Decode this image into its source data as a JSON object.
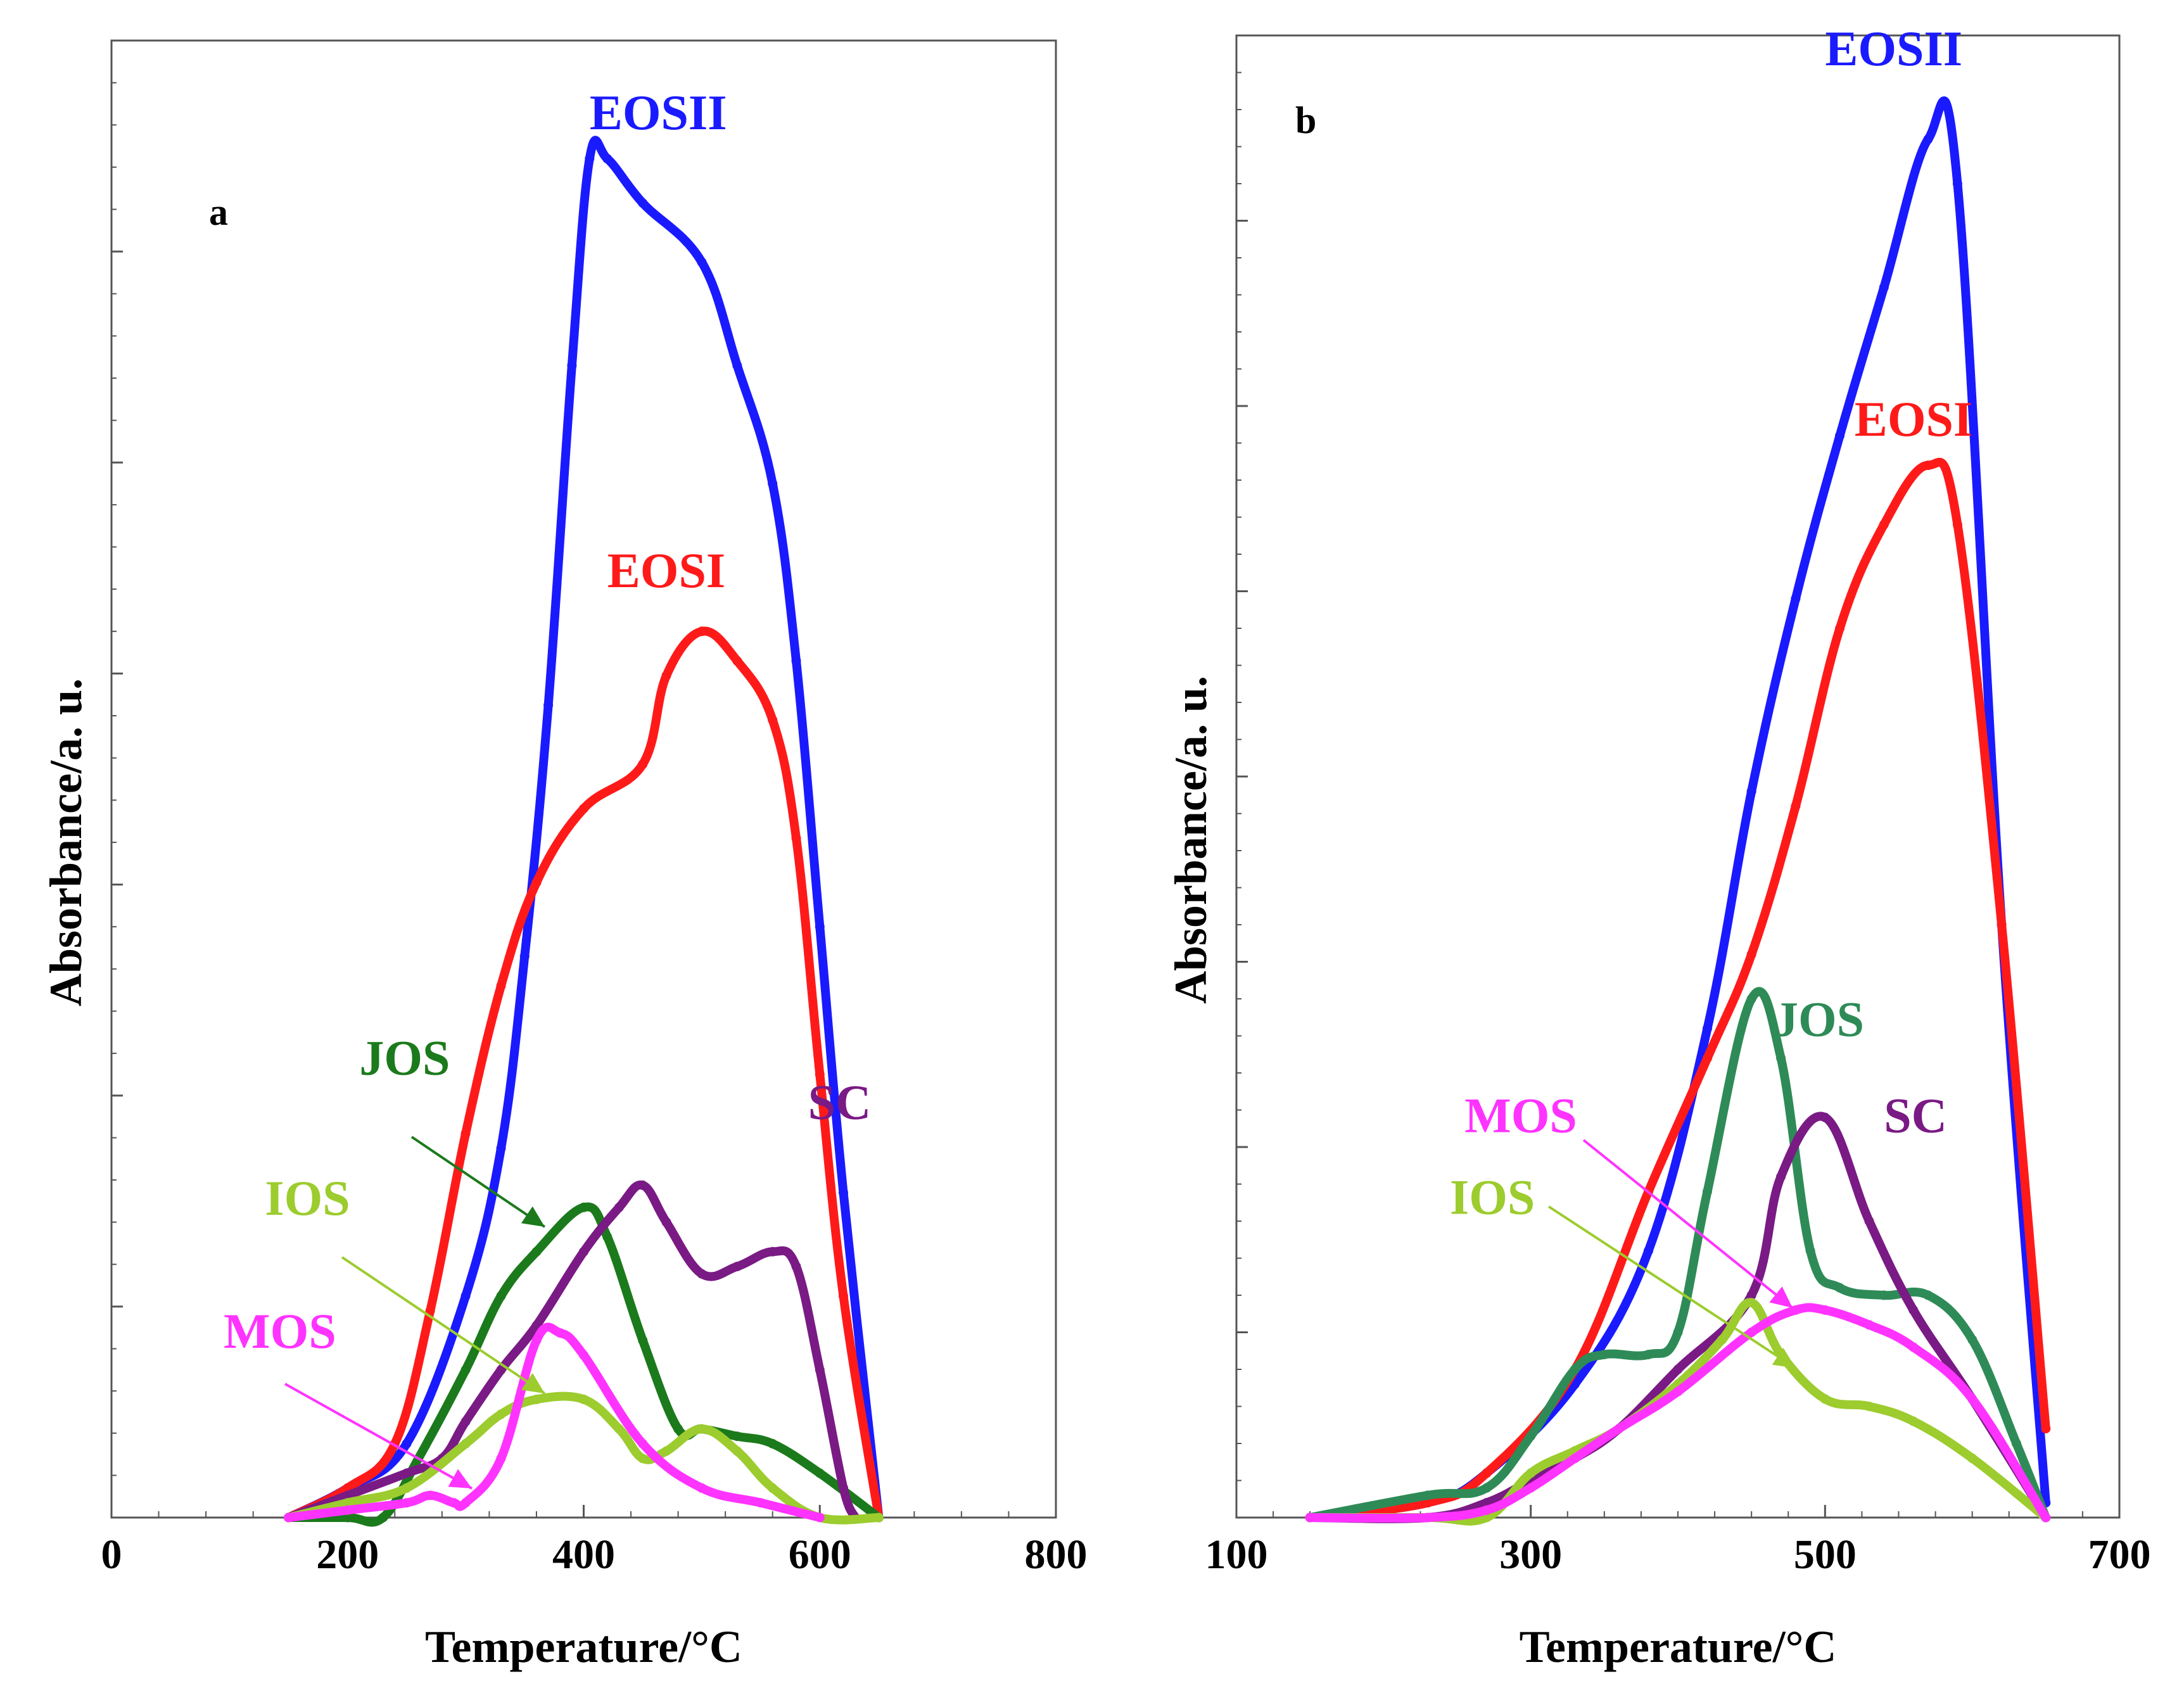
{
  "chart_data": [
    {
      "type": "line",
      "panel": "a",
      "xlabel": "Temperature/°C",
      "ylabel": "Absorbance/a. u.",
      "xlim": [
        0,
        800
      ],
      "ylim": [
        0,
        100
      ],
      "x_ticks": [
        0,
        200,
        400,
        600,
        800
      ],
      "series": [
        {
          "name": "EOSII",
          "color": "#1a1aff",
          "label_at": [
            405,
            94
          ],
          "label_anchor": "start",
          "x": [
            150,
            200,
            250,
            300,
            330,
            350,
            370,
            390,
            405,
            420,
            450,
            500,
            530,
            560,
            580,
            600,
            620,
            650
          ],
          "y": [
            0,
            2,
            5,
            15,
            25,
            38,
            55,
            78,
            92,
            92,
            89,
            85,
            78,
            70,
            58,
            40,
            22,
            0
          ]
        },
        {
          "name": "EOSI",
          "color": "#ff1a1a",
          "label_at": [
            420,
            63
          ],
          "label_anchor": "start",
          "x": [
            150,
            200,
            240,
            270,
            300,
            330,
            360,
            400,
            450,
            470,
            500,
            530,
            560,
            580,
            600,
            620,
            650
          ],
          "y": [
            0,
            2,
            5,
            14,
            26,
            36,
            43,
            48,
            51,
            57,
            60,
            58,
            54,
            46,
            30,
            15,
            0
          ]
        },
        {
          "name": "JOS",
          "color": "#1b7a1b",
          "label_at": [
            210,
            30
          ],
          "label_anchor": "start",
          "x": [
            150,
            200,
            230,
            260,
            300,
            330,
            360,
            400,
            420,
            450,
            480,
            500,
            530,
            560,
            600,
            650
          ],
          "y": [
            0,
            0,
            0,
            4,
            10,
            15,
            18,
            21,
            19,
            12,
            6,
            6,
            5.5,
            5,
            3,
            0
          ]
        },
        {
          "name": "SC",
          "color": "#7a1a85",
          "label_at": [
            590,
            27
          ],
          "label_anchor": "start",
          "x": [
            150,
            200,
            250,
            280,
            300,
            330,
            360,
            400,
            430,
            450,
            470,
            500,
            530,
            560,
            580,
            600,
            620,
            630
          ],
          "y": [
            0,
            1.5,
            3,
            4,
            6.5,
            10,
            13,
            18,
            21,
            22.5,
            20,
            16.5,
            17,
            18,
            17,
            10,
            2,
            0
          ]
        },
        {
          "name": "IOS",
          "color": "#9ccc2e",
          "label_at": [
            130,
            20.5
          ],
          "label_anchor": "start",
          "x": [
            150,
            200,
            250,
            300,
            330,
            360,
            400,
            430,
            450,
            470,
            500,
            530,
            560,
            600,
            650
          ],
          "y": [
            0,
            1,
            2,
            5,
            7,
            8,
            8,
            6,
            4,
            4.5,
            6,
            4.5,
            2,
            0,
            0
          ]
        },
        {
          "name": "MOS",
          "color": "#ff33ff",
          "label_at": [
            95,
            11.5
          ],
          "label_anchor": "start",
          "x": [
            150,
            200,
            250,
            270,
            290,
            300,
            330,
            360,
            380,
            400,
            450,
            500,
            550,
            600
          ],
          "y": [
            0,
            0.5,
            1,
            1.5,
            1,
            1,
            4,
            12,
            12.5,
            11,
            5,
            2,
            1,
            0
          ]
        }
      ],
      "annotations": [
        {
          "text": "JOS",
          "color": "#1b7a1b"
        },
        {
          "text": "IOS",
          "color": "#9ccc2e"
        },
        {
          "text": "MOS",
          "color": "#ff33ff"
        }
      ]
    },
    {
      "type": "line",
      "panel": "b",
      "xlabel": "Temperature/°C",
      "ylabel": "Absorbance/a. u.",
      "xlim": [
        100,
        700
      ],
      "ylim": [
        0,
        100
      ],
      "x_ticks": [
        100,
        300,
        500,
        700
      ],
      "series": [
        {
          "name": "EOSII",
          "color": "#1a1aff",
          "label_at": [
            500,
            98
          ],
          "label_anchor": "start",
          "x": [
            150,
            230,
            270,
            330,
            380,
            420,
            450,
            480,
            510,
            540,
            570,
            590,
            620,
            650
          ],
          "y": [
            0,
            1,
            3,
            9,
            18,
            33,
            49,
            62,
            73,
            83,
            93,
            90,
            40,
            1
          ]
        },
        {
          "name": "EOSI",
          "color": "#ff1a1a",
          "label_at": [
            520,
            73
          ],
          "label_anchor": "start",
          "x": [
            150,
            230,
            270,
            330,
            380,
            420,
            450,
            480,
            510,
            540,
            570,
            590,
            620,
            650
          ],
          "y": [
            0,
            1,
            3,
            10,
            22,
            31,
            38,
            48,
            60,
            67,
            71,
            67,
            40,
            6
          ]
        },
        {
          "name": "JOS",
          "color": "#2e8b57",
          "label_at": [
            465,
            32.5
          ],
          "label_anchor": "start",
          "x": [
            150,
            230,
            270,
            300,
            330,
            350,
            380,
            400,
            420,
            450,
            470,
            490,
            510,
            540,
            570,
            600,
            630,
            650
          ],
          "y": [
            0,
            1.5,
            2,
            5.5,
            10,
            11,
            11,
            12.5,
            22,
            35,
            31,
            18,
            15.5,
            15,
            15,
            12,
            5,
            0
          ]
        },
        {
          "name": "SC",
          "color": "#7a1a85",
          "label_at": [
            540,
            26
          ],
          "label_anchor": "start",
          "x": [
            150,
            230,
            270,
            300,
            330,
            360,
            400,
            450,
            470,
            500,
            530,
            560,
            600,
            650
          ],
          "y": [
            0,
            0,
            1,
            2.5,
            4,
            6,
            10,
            15,
            23,
            27,
            20,
            14,
            8,
            0
          ]
        },
        {
          "name": "IOS",
          "color": "#9ccc2e",
          "label_at": [
            245,
            20.5
          ],
          "label_anchor": "start",
          "x": [
            150,
            230,
            270,
            300,
            330,
            360,
            400,
            430,
            450,
            470,
            500,
            530,
            560,
            600,
            650
          ],
          "y": [
            0,
            0,
            0,
            3,
            4.5,
            6,
            9,
            12,
            14.5,
            11,
            8,
            7.5,
            6.5,
            4,
            0
          ]
        },
        {
          "name": "MOS",
          "color": "#ff33ff",
          "label_at": [
            255,
            26
          ],
          "label_anchor": "start",
          "x": [
            150,
            230,
            270,
            300,
            330,
            360,
            400,
            450,
            480,
            500,
            530,
            560,
            600,
            650
          ],
          "y": [
            0,
            0,
            0.5,
            2,
            4,
            6,
            8.5,
            12.5,
            14,
            14,
            13,
            11.5,
            8,
            0
          ]
        }
      ],
      "annotations": [
        {
          "text": "MOS",
          "color": "#ff33ff"
        },
        {
          "text": "IOS",
          "color": "#9ccc2e"
        }
      ]
    }
  ]
}
